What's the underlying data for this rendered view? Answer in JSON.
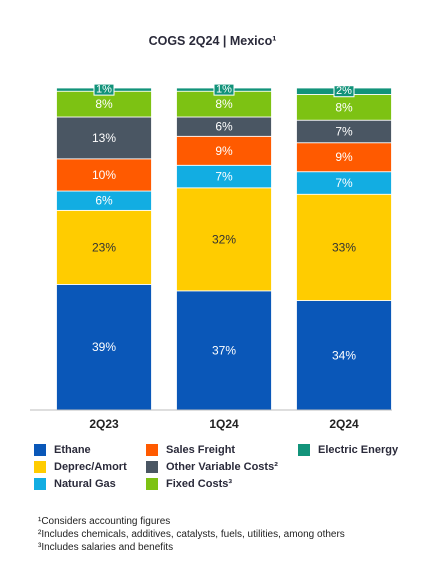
{
  "chart_data": {
    "type": "bar",
    "stacked": true,
    "title": "COGS 2Q24 | Mexico¹",
    "xlabel": "",
    "ylabel": "",
    "ylim": [
      0,
      100
    ],
    "categories": [
      "2Q23",
      "1Q24",
      "2Q24"
    ],
    "series": [
      {
        "name": "Ethane",
        "color": "#0a57b8",
        "label_color": "#ffffff",
        "values": [
          39,
          37,
          34
        ],
        "labels": [
          "39%",
          "37%",
          "34%"
        ]
      },
      {
        "name": "Deprec/Amort",
        "color": "#ffcc00",
        "label_color": "#333333",
        "values": [
          23,
          32,
          33
        ],
        "labels": [
          "23%",
          "32%",
          "33%"
        ]
      },
      {
        "name": "Natural Gas",
        "color": "#12ade2",
        "label_color": "#ffffff",
        "values": [
          6,
          7,
          7
        ],
        "labels": [
          "6%",
          "7%",
          "7%"
        ]
      },
      {
        "name": "Sales Freight",
        "color": "#ff5a00",
        "label_color": "#ffffff",
        "values": [
          10,
          9,
          9
        ],
        "labels": [
          "10%",
          "9%",
          "9%"
        ]
      },
      {
        "name": "Other Variable Costs²",
        "color": "#4a5663",
        "label_color": "#ffffff",
        "values": [
          13,
          6,
          7
        ],
        "labels": [
          "13%",
          "6%",
          "7%"
        ]
      },
      {
        "name": "Fixed Costs³",
        "color": "#7dc213",
        "label_color": "#ffffff",
        "values": [
          8,
          8,
          8
        ],
        "labels": [
          "8%",
          "8%",
          "8%"
        ]
      },
      {
        "name": "Electric Energy",
        "color": "#12937a",
        "label_color": "#ffffff",
        "values": [
          1,
          1,
          2
        ],
        "labels": [
          "1%",
          "1%",
          "2%"
        ]
      }
    ],
    "legend": {
      "position": "bottom",
      "rows": [
        [
          "Ethane",
          "Sales Freight",
          "Electric Energy"
        ],
        [
          "Deprec/Amort",
          "Other Variable Costs²"
        ],
        [
          "Natural Gas",
          "Fixed Costs³"
        ]
      ]
    },
    "footnotes": [
      "¹Considers accounting figures",
      "²Includes chemicals, additives, catalysts, fuels, utilities, among others",
      "³Includes salaries and benefits"
    ]
  }
}
